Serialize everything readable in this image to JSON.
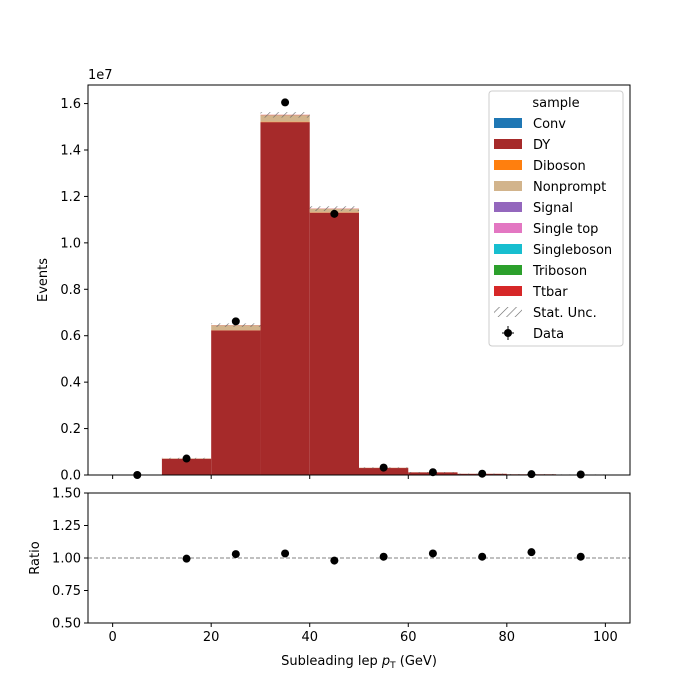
{
  "chart_data": {
    "type": "bar",
    "stacked": true,
    "ylabel": "Events",
    "xlabel": "Subleading lep p_T (GeV)",
    "xlabel_main": "Subleading lep ",
    "xlabel_sym": "p",
    "xlabel_sub": "T",
    "xlabel_unit": " (GeV)",
    "y_offset_label": "1e7",
    "xlim": [
      -5,
      105
    ],
    "ylim": [
      0,
      16800000
    ],
    "bin_edges": [
      0,
      10,
      20,
      30,
      40,
      50,
      60,
      70,
      80,
      90,
      100
    ],
    "x_ticks": [
      "0",
      "20",
      "40",
      "60",
      "80",
      "100"
    ],
    "y_ticks": [
      "0.0",
      "0.2",
      "0.4",
      "0.6",
      "0.8",
      "1.0",
      "1.2",
      "1.4",
      "1.6"
    ],
    "series": [
      {
        "name": "Conv",
        "color": "#1f77b4",
        "values": [
          0,
          0,
          0,
          0,
          0,
          0,
          0,
          0,
          0,
          0
        ]
      },
      {
        "name": "DY",
        "color": "#a62a2a",
        "values": [
          0,
          700000,
          6230000,
          15200000,
          11300000,
          300000,
          110000,
          50000,
          30000,
          20000
        ]
      },
      {
        "name": "Diboson",
        "color": "#ff7f0e",
        "values": [
          0,
          3000,
          8000,
          20000,
          15000,
          3000,
          2000,
          1000,
          500,
          300
        ]
      },
      {
        "name": "Nonprompt",
        "color": "#d2b48c",
        "values": [
          0,
          10000,
          210000,
          280000,
          150000,
          10000,
          5000,
          3000,
          2000,
          1000
        ]
      },
      {
        "name": "Signal",
        "color": "#9467bd",
        "values": [
          0,
          0,
          0,
          0,
          0,
          0,
          0,
          0,
          0,
          0
        ]
      },
      {
        "name": "Single top",
        "color": "#e377c2",
        "values": [
          0,
          0,
          0,
          0,
          0,
          0,
          0,
          0,
          0,
          0
        ]
      },
      {
        "name": "Singleboson",
        "color": "#17becf",
        "values": [
          0,
          0,
          0,
          0,
          0,
          0,
          0,
          0,
          0,
          0
        ]
      },
      {
        "name": "Triboson",
        "color": "#2ca02c",
        "values": [
          0,
          0,
          0,
          0,
          0,
          0,
          0,
          0,
          0,
          0
        ]
      },
      {
        "name": "Ttbar",
        "color": "#d62728",
        "values": [
          0,
          2000,
          8000,
          15000,
          10000,
          3000,
          2000,
          1000,
          500,
          300
        ]
      }
    ],
    "stat_unc_label": "Stat. Unc.",
    "data": {
      "name": "Data",
      "x": [
        5,
        15,
        25,
        35,
        45,
        55,
        65,
        75,
        85,
        95
      ],
      "y": [
        0,
        710000,
        6620000,
        16050000,
        11250000,
        320000,
        120000,
        55000,
        36000,
        22000
      ]
    },
    "legend": {
      "title": "sample",
      "placement": "top-right"
    },
    "ratio": {
      "ylabel": "Ratio",
      "ylim": [
        0.5,
        1.5
      ],
      "y_ticks": [
        "0.50",
        "0.75",
        "1.00",
        "1.25",
        "1.50"
      ],
      "reference": 1.0,
      "x": [
        15,
        25,
        35,
        45,
        55,
        65,
        75,
        85,
        95
      ],
      "values": [
        0.995,
        1.03,
        1.035,
        0.98,
        1.01,
        1.035,
        1.01,
        1.045,
        1.01
      ]
    }
  }
}
